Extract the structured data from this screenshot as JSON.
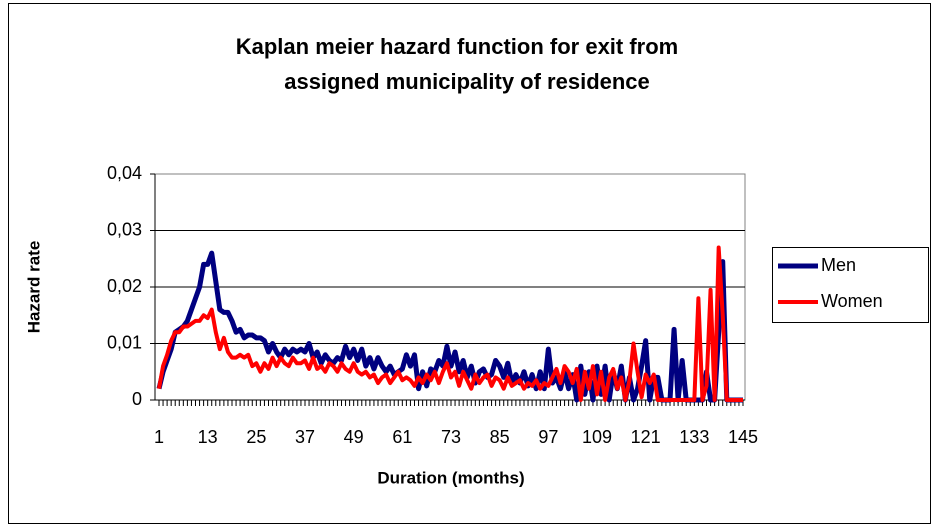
{
  "chart_data": {
    "type": "line",
    "title_lines": [
      "Kaplan meier hazard function for exit from",
      "assigned municipality of residence"
    ],
    "x_label": "Duration (months)",
    "y_label": "Hazard rate",
    "categories": [
      "1",
      null,
      null,
      null,
      null,
      null,
      null,
      null,
      null,
      null,
      null,
      null,
      "13",
      null,
      null,
      null,
      null,
      null,
      null,
      null,
      null,
      null,
      null,
      null,
      "25",
      null,
      null,
      null,
      null,
      null,
      null,
      null,
      null,
      null,
      null,
      null,
      "37",
      null,
      null,
      null,
      null,
      null,
      null,
      null,
      null,
      null,
      null,
      null,
      "49",
      null,
      null,
      null,
      null,
      null,
      null,
      null,
      null,
      null,
      null,
      null,
      "61",
      null,
      null,
      null,
      null,
      null,
      null,
      null,
      null,
      null,
      null,
      null,
      "73",
      null,
      null,
      null,
      null,
      null,
      null,
      null,
      null,
      null,
      null,
      null,
      "85",
      null,
      null,
      null,
      null,
      null,
      null,
      null,
      null,
      null,
      null,
      null,
      "97",
      null,
      null,
      null,
      null,
      null,
      null,
      null,
      null,
      null,
      null,
      null,
      "109",
      null,
      null,
      null,
      null,
      null,
      null,
      null,
      null,
      null,
      null,
      null,
      "121",
      null,
      null,
      null,
      null,
      null,
      null,
      null,
      null,
      null,
      null,
      null,
      "133",
      null,
      null,
      null,
      null,
      null,
      null,
      null,
      null,
      null,
      null,
      null,
      "145"
    ],
    "series": [
      {
        "name": "Men",
        "color": "#000080",
        "values": [
          0.002,
          0.005,
          0.007,
          0.009,
          0.012,
          0.0125,
          0.013,
          0.014,
          0.016,
          0.018,
          0.02,
          0.024,
          0.024,
          0.026,
          0.021,
          0.016,
          0.0155,
          0.0155,
          0.014,
          0.012,
          0.0125,
          0.011,
          0.0115,
          0.0115,
          0.011,
          0.011,
          0.0105,
          0.0085,
          0.01,
          0.0085,
          0.0075,
          0.009,
          0.008,
          0.009,
          0.0085,
          0.009,
          0.0085,
          0.01,
          0.0075,
          0.0085,
          0.0065,
          0.008,
          0.007,
          0.0065,
          0.0075,
          0.007,
          0.0095,
          0.0075,
          0.009,
          0.007,
          0.009,
          0.006,
          0.0075,
          0.0055,
          0.0075,
          0.006,
          0.005,
          0.006,
          0.0045,
          0.005,
          0.0055,
          0.008,
          0.006,
          0.008,
          0.002,
          0.005,
          0.0025,
          0.0055,
          0.005,
          0.007,
          0.006,
          0.0095,
          0.006,
          0.0085,
          0.005,
          0.007,
          0.004,
          0.006,
          0.003,
          0.005,
          0.0055,
          0.004,
          0.0045,
          0.007,
          0.006,
          0.004,
          0.0065,
          0.003,
          0.0045,
          0.003,
          0.005,
          0.0025,
          0.0045,
          0.002,
          0.005,
          0.002,
          0.009,
          0.003,
          0.004,
          0.002,
          0.005,
          0.002,
          0.0045,
          0,
          0.006,
          0.001,
          0.005,
          0,
          0.006,
          0.001,
          0.006,
          0,
          0.005,
          0.002,
          0.006,
          0,
          0.004,
          0,
          0.002,
          0.006,
          0.0105,
          0,
          0.004,
          0.004,
          0,
          0,
          0,
          0.0125,
          0,
          0.007,
          0,
          0,
          0,
          0,
          0,
          0.005,
          0,
          0,
          0.012,
          0.0245,
          0,
          0,
          0,
          0,
          0
        ]
      },
      {
        "name": "Women",
        "color": "#ff0000",
        "values": [
          0.002,
          0.006,
          0.008,
          0.0105,
          0.012,
          0.012,
          0.013,
          0.013,
          0.0135,
          0.014,
          0.014,
          0.015,
          0.0145,
          0.016,
          0.012,
          0.009,
          0.011,
          0.0085,
          0.0075,
          0.0075,
          0.008,
          0.0075,
          0.008,
          0.006,
          0.0065,
          0.005,
          0.0065,
          0.0055,
          0.0075,
          0.006,
          0.0075,
          0.0065,
          0.006,
          0.0075,
          0.0065,
          0.0065,
          0.007,
          0.0055,
          0.0075,
          0.0055,
          0.006,
          0.005,
          0.0065,
          0.006,
          0.005,
          0.0065,
          0.0055,
          0.005,
          0.0065,
          0.005,
          0.0045,
          0.005,
          0.004,
          0.0045,
          0.003,
          0.004,
          0.0045,
          0.003,
          0.004,
          0.005,
          0.0035,
          0.004,
          0.0035,
          0.0025,
          0.004,
          0.003,
          0.0045,
          0.0035,
          0.005,
          0.003,
          0.005,
          0.0065,
          0.004,
          0.005,
          0.0025,
          0.005,
          0.0035,
          0.002,
          0.0045,
          0.003,
          0.004,
          0.0045,
          0.0025,
          0.004,
          0.0035,
          0.002,
          0.004,
          0.0025,
          0.003,
          0.0035,
          0.002,
          0.003,
          0.0025,
          0.0035,
          0.002,
          0.003,
          0.0025,
          0.004,
          0.0055,
          0.003,
          0.006,
          0.005,
          0.003,
          0.0055,
          0,
          0.005,
          0.002,
          0.006,
          0.001,
          0.005,
          0,
          0.004,
          0.0055,
          0.002,
          0.004,
          0,
          0.0035,
          0.01,
          0.005,
          0.0005,
          0.0045,
          0.003,
          0.0045,
          0,
          0,
          0,
          0,
          0,
          0,
          0,
          0,
          0,
          0,
          0.018,
          0,
          0.0025,
          0.0195,
          0,
          0.027,
          0.015,
          0,
          0,
          0,
          0,
          0
        ]
      }
    ],
    "ylim": [
      0,
      0.04
    ],
    "yticks": [
      0,
      {
        "value": 0.01,
        "label": "0,01"
      },
      {
        "value": 0.02,
        "label": "0,02"
      },
      {
        "value": 0.03,
        "label": "0,03"
      },
      {
        "value": 0.04,
        "label": "0,04"
      }
    ],
    "grid": true,
    "legend": "right"
  }
}
